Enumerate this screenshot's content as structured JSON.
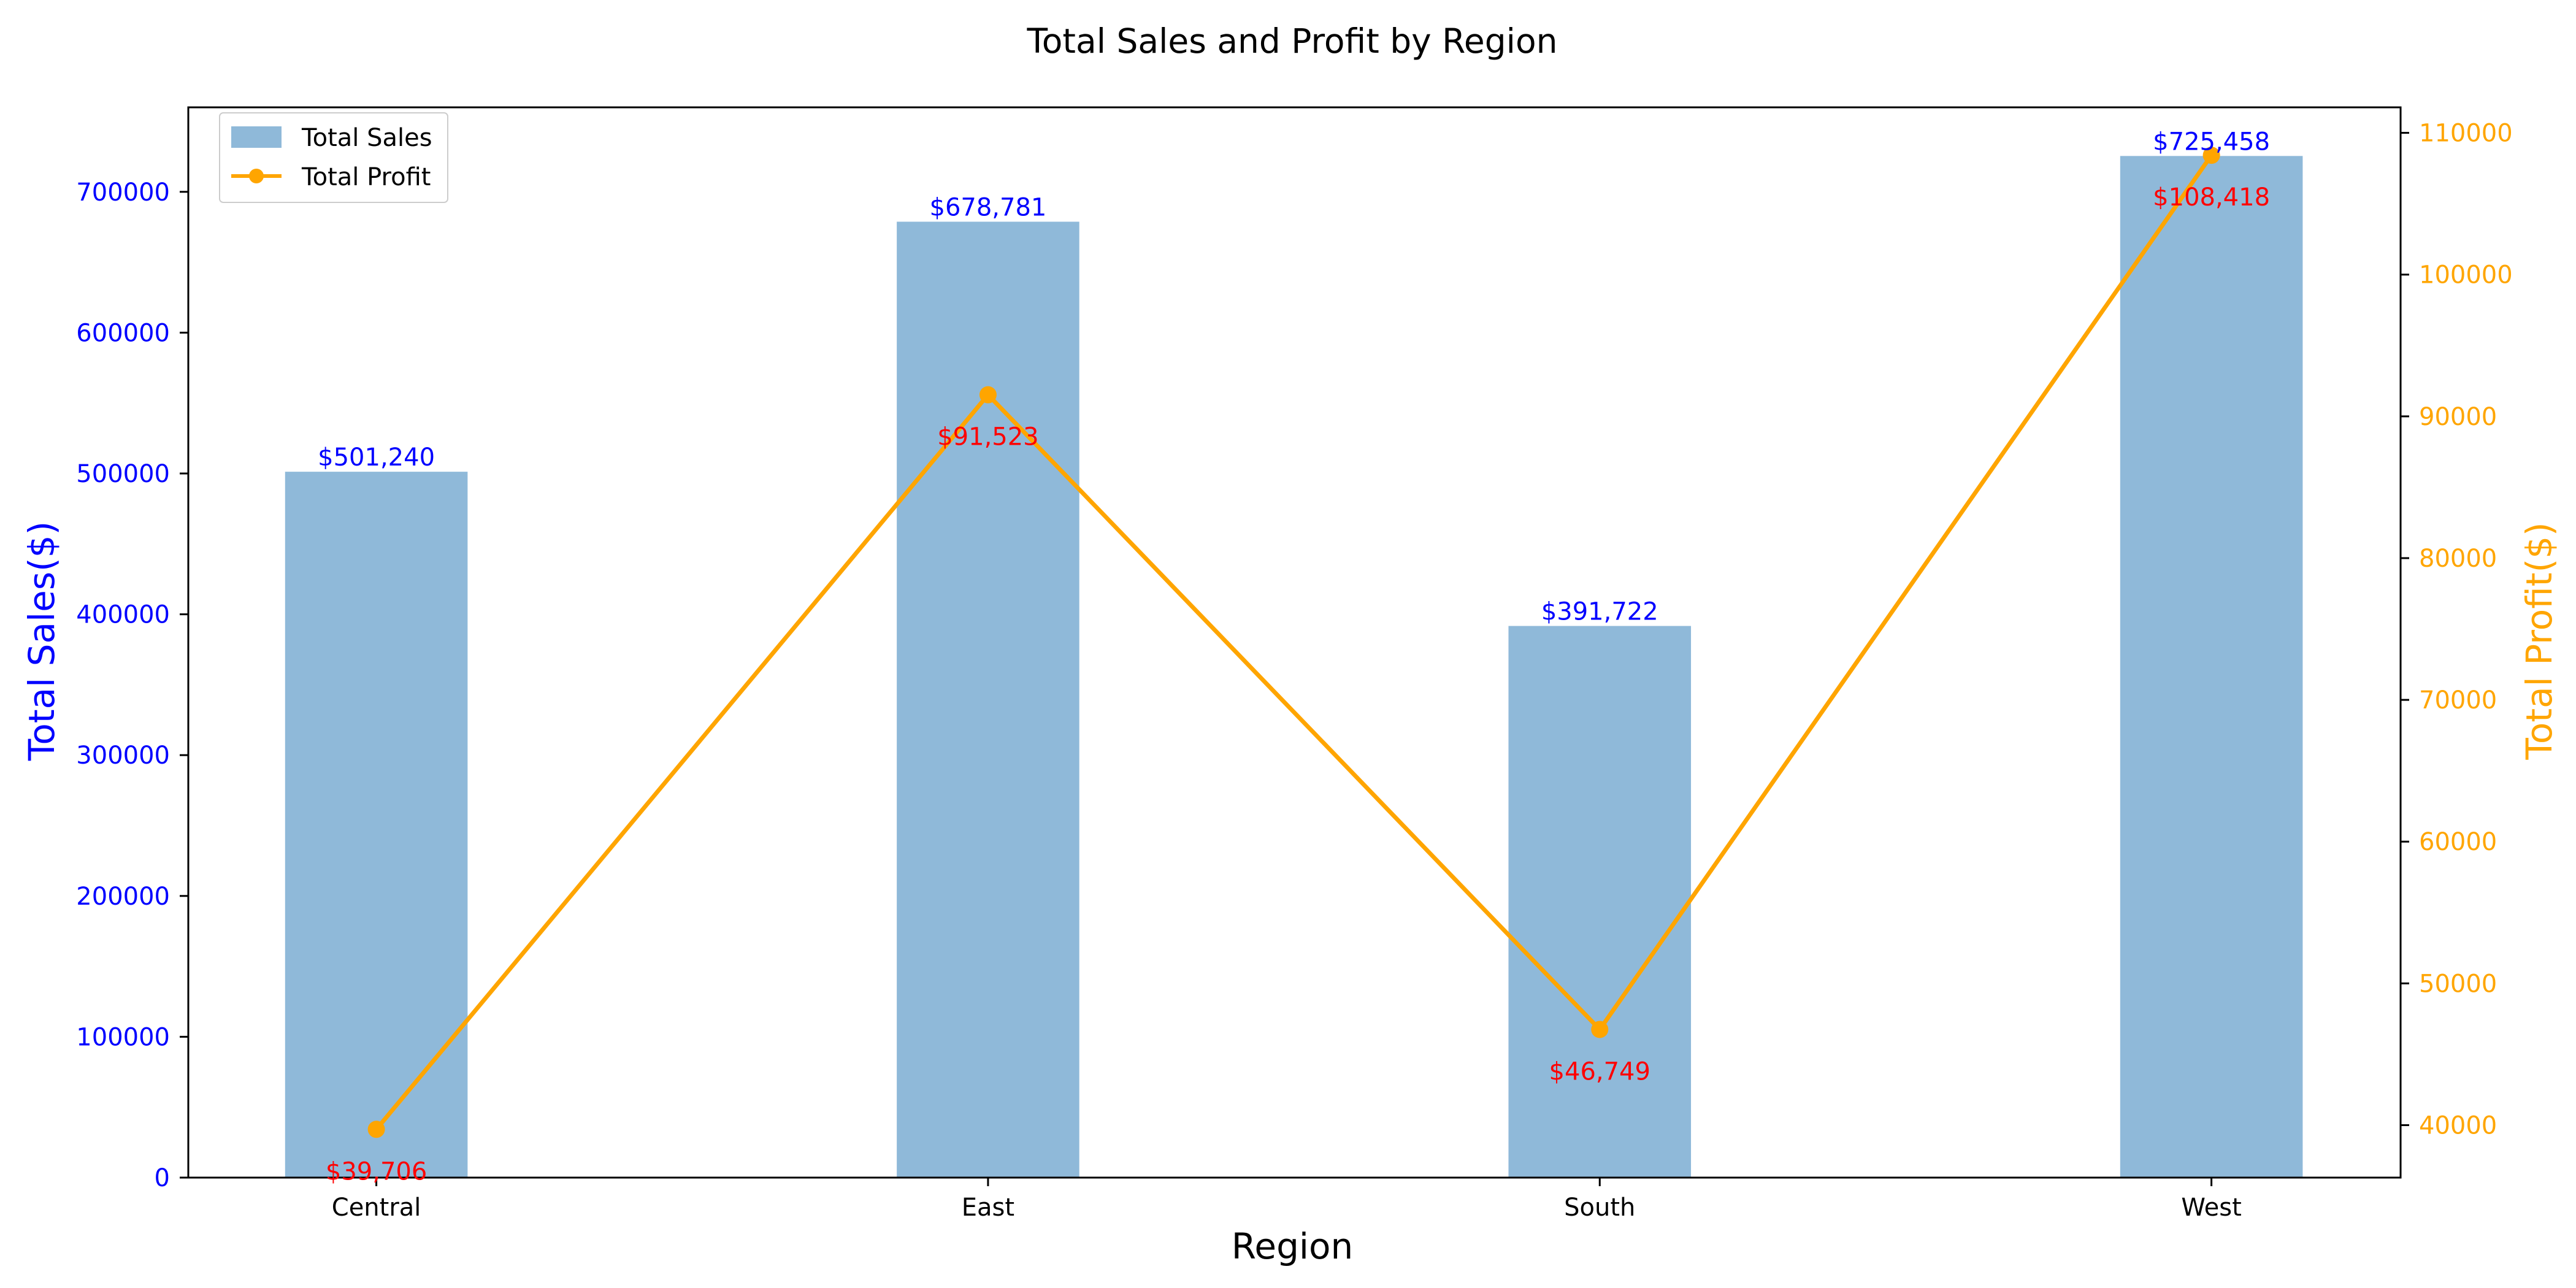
{
  "chart_data": {
    "type": "bar",
    "title": "Total Sales and Profit by Region",
    "xlabel": "Region",
    "categories": [
      "Central",
      "East",
      "South",
      "West"
    ],
    "series": [
      {
        "name": "Total Sales",
        "kind": "bar",
        "axis": "left",
        "values": [
          501240,
          678781,
          391722,
          725458
        ],
        "value_labels": [
          "$501,240",
          "$678,781",
          "$391,722",
          "$725,458"
        ]
      },
      {
        "name": "Total Profit",
        "kind": "line",
        "axis": "right",
        "values": [
          39706,
          91523,
          46749,
          108418
        ],
        "value_labels": [
          "$39,706",
          "$91,523",
          "$46,749",
          "$108,418"
        ]
      }
    ],
    "y_left": {
      "label": "Total Sales($)",
      "lim": [
        0,
        760000
      ],
      "ticks": [
        0,
        100000,
        200000,
        300000,
        400000,
        500000,
        600000,
        700000
      ],
      "tick_labels": [
        "0",
        "100000",
        "200000",
        "300000",
        "400000",
        "500000",
        "600000",
        "700000"
      ]
    },
    "y_right": {
      "label": "Total Profit($)",
      "lim": [
        36300,
        111800
      ],
      "ticks": [
        40000,
        50000,
        60000,
        70000,
        80000,
        90000,
        100000,
        110000
      ],
      "tick_labels": [
        "40000",
        "50000",
        "60000",
        "70000",
        "80000",
        "90000",
        "100000",
        "110000"
      ]
    },
    "grid": false,
    "legend": "top-left",
    "colors": {
      "bar": "#8fb9d9",
      "line": "#ffa500",
      "left_axis": "#0000ff",
      "right_axis": "#ffa500",
      "bar_value_label": "#0000ff",
      "line_value_label": "#ff0000",
      "frame": "#000000"
    }
  }
}
